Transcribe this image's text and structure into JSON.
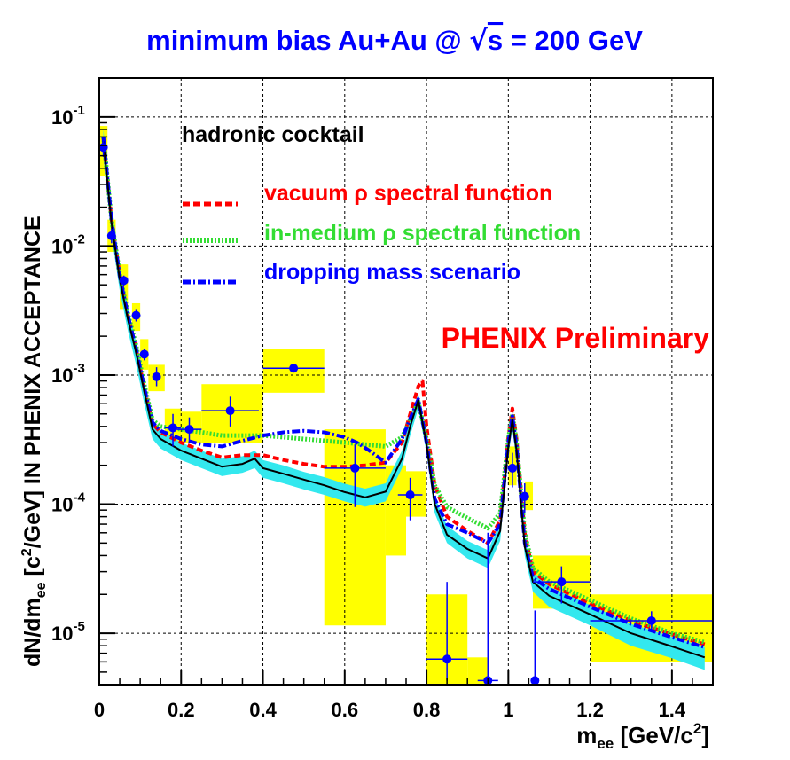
{
  "chart_data": {
    "type": "line",
    "title_main": "minimum bias Au+Au @ ",
    "title_sqrt": "√",
    "title_s": "s",
    "title_tail": " = 200 GeV",
    "xlabel_main": "m",
    "xlabel_sub": "ee",
    "xlabel_tail": " [GeV/c",
    "xlabel_sup": "2",
    "xlabel_end": "]",
    "ylabel_main": "dN/dm",
    "ylabel_sub": "ee",
    "ylabel_mid": " [c",
    "ylabel_sup": "2",
    "ylabel_tail": "/GeV] IN PHENIX ACCEPTANCE",
    "xlim": [
      0,
      1.5
    ],
    "ylim": [
      4e-06,
      0.2
    ],
    "yscale": "log",
    "grid": true,
    "xticks": [
      {
        "v": 0,
        "label": "0"
      },
      {
        "v": 0.2,
        "label": "0.2"
      },
      {
        "v": 0.4,
        "label": "0.4"
      },
      {
        "v": 0.6,
        "label": "0.6"
      },
      {
        "v": 0.8,
        "label": "0.8"
      },
      {
        "v": 1.0,
        "label": "1"
      },
      {
        "v": 1.2,
        "label": "1.2"
      },
      {
        "v": 1.4,
        "label": "1.4"
      }
    ],
    "yticks": [
      {
        "v": 0.1,
        "base": "10",
        "exp": "-1"
      },
      {
        "v": 0.01,
        "base": "10",
        "exp": "-2"
      },
      {
        "v": 0.001,
        "base": "10",
        "exp": "-3"
      },
      {
        "v": 0.0001,
        "base": "10",
        "exp": "-4"
      },
      {
        "v": 1e-05,
        "base": "10",
        "exp": "-5"
      }
    ],
    "annotation": "PHENIX Preliminary",
    "legend": [
      {
        "label": "hadronic cocktail",
        "color": "#000000",
        "style": "solid"
      },
      {
        "label": "vacuum ρ spectral function",
        "color": "#ff0000",
        "style": "dashed"
      },
      {
        "label": "in-medium ρ spectral function",
        "color": "#33dd33",
        "style": "dotted"
      },
      {
        "label": "dropping mass scenario",
        "color": "#0000ff",
        "style": "dashdot"
      }
    ],
    "colors": {
      "title": "#0000ff",
      "band": "#33e8ee",
      "sys_box": "#ffff00",
      "data_point": "#0000ff",
      "annotation": "#ff0000"
    },
    "cocktail_band": {
      "x": [
        0.01,
        0.03,
        0.05,
        0.07,
        0.09,
        0.11,
        0.13,
        0.15,
        0.2,
        0.25,
        0.3,
        0.35,
        0.38,
        0.4,
        0.45,
        0.5,
        0.55,
        0.6,
        0.65,
        0.7,
        0.74,
        0.76,
        0.78,
        0.8,
        0.82,
        0.85,
        0.9,
        0.95,
        0.98,
        1.0,
        1.01,
        1.02,
        1.04,
        1.06,
        1.1,
        1.2,
        1.3,
        1.4,
        1.48
      ],
      "lo": [
        0.05,
        0.012,
        0.0045,
        0.0022,
        0.0012,
        0.0006,
        0.00032,
        0.00027,
        0.00022,
        0.00019,
        0.000165,
        0.000175,
        0.00019,
        0.00016,
        0.000145,
        0.00013,
        0.000118,
        0.000105,
        9.55e-05,
        0.000105,
        0.00019,
        0.00034,
        0.00055,
        0.00025,
        8.5e-05,
        5e-05,
        3.8e-05,
        3.2e-05,
        5.2e-05,
        0.00024,
        0.00038,
        0.00022,
        4e-05,
        2.1e-05,
        1.6e-05,
        1.15e-05,
        8e-06,
        6.4e-06,
        5.2e-06
      ],
      "hi": [
        0.08,
        0.019,
        0.007,
        0.0033,
        0.0018,
        0.0009,
        0.00045,
        0.00037,
        0.0003,
        0.00026,
        0.000225,
        0.000235,
        0.00026,
        0.00022,
        0.0002,
        0.000178,
        0.000162,
        0.000144,
        0.000132,
        0.000145,
        0.00026,
        0.00046,
        0.00072,
        0.00034,
        0.000115,
        6.8e-05,
        5.2e-05,
        4.4e-05,
        7.2e-05,
        0.00032,
        0.00052,
        0.0003,
        5.5e-05,
        3e-05,
        2.3e-05,
        1.65e-05,
        1.18e-05,
        9.4e-06,
        7.8e-06
      ]
    },
    "series": [
      {
        "name": "hadronic cocktail",
        "color": "#000000",
        "dash": "none",
        "width": 2,
        "x": [
          0.01,
          0.03,
          0.05,
          0.07,
          0.09,
          0.11,
          0.13,
          0.15,
          0.2,
          0.25,
          0.3,
          0.35,
          0.38,
          0.4,
          0.45,
          0.5,
          0.55,
          0.6,
          0.65,
          0.7,
          0.74,
          0.76,
          0.78,
          0.8,
          0.82,
          0.85,
          0.9,
          0.95,
          0.98,
          1.0,
          1.01,
          1.02,
          1.04,
          1.06,
          1.1,
          1.2,
          1.3,
          1.4,
          1.48
        ],
        "y": [
          0.065,
          0.015,
          0.0055,
          0.0027,
          0.0015,
          0.00075,
          0.00038,
          0.00032,
          0.00026,
          0.000225,
          0.000195,
          0.000205,
          0.000225,
          0.00019,
          0.000172,
          0.000155,
          0.00014,
          0.000124,
          0.000113,
          0.000125,
          0.000225,
          0.0004,
          0.00064,
          0.00029,
          0.0001,
          5.8e-05,
          4.5e-05,
          3.8e-05,
          6.2e-05,
          0.00028,
          0.00045,
          0.00026,
          4.7e-05,
          2.5e-05,
          1.95e-05,
          1.4e-05,
          1e-05,
          7.9e-06,
          6.5e-06
        ]
      },
      {
        "name": "vacuum ρ spectral function",
        "color": "#ff0000",
        "dash": "7,4",
        "width": 4,
        "x": [
          0.01,
          0.03,
          0.05,
          0.07,
          0.09,
          0.11,
          0.13,
          0.15,
          0.2,
          0.25,
          0.3,
          0.35,
          0.4,
          0.45,
          0.5,
          0.55,
          0.6,
          0.65,
          0.7,
          0.74,
          0.76,
          0.78,
          0.79,
          0.8,
          0.82,
          0.85,
          0.9,
          0.95,
          0.98,
          1.0,
          1.01,
          1.02,
          1.04,
          1.06,
          1.1,
          1.2,
          1.3,
          1.4,
          1.48
        ],
        "y": [
          0.068,
          0.016,
          0.006,
          0.0029,
          0.0016,
          0.0008,
          0.00042,
          0.00036,
          0.0003,
          0.00026,
          0.00023,
          0.00024,
          0.00024,
          0.00022,
          0.000205,
          0.000195,
          0.000195,
          0.0002,
          0.00021,
          0.0003,
          0.0005,
          0.00082,
          0.0009,
          0.0004,
          0.00014,
          8e-05,
          6.2e-05,
          5e-05,
          7.5e-05,
          0.00033,
          0.00055,
          0.00032,
          6e-05,
          3e-05,
          2.4e-05,
          1.7e-05,
          1.25e-05,
          9.8e-06,
          8.2e-06
        ]
      },
      {
        "name": "in-medium ρ spectral function",
        "color": "#33dd33",
        "dash": "2,2",
        "width": 5,
        "x": [
          0.01,
          0.03,
          0.05,
          0.07,
          0.09,
          0.11,
          0.13,
          0.15,
          0.2,
          0.25,
          0.3,
          0.35,
          0.4,
          0.45,
          0.5,
          0.55,
          0.6,
          0.65,
          0.7,
          0.74,
          0.76,
          0.78,
          0.8,
          0.82,
          0.85,
          0.9,
          0.95,
          0.98,
          1.0,
          1.01,
          1.02,
          1.04,
          1.06,
          1.1,
          1.2,
          1.3,
          1.4,
          1.48
        ],
        "y": [
          0.07,
          0.016,
          0.006,
          0.003,
          0.0017,
          0.00085,
          0.00045,
          0.0004,
          0.00038,
          0.00036,
          0.00034,
          0.00034,
          0.00034,
          0.00033,
          0.00032,
          0.00031,
          0.0003,
          0.00029,
          0.00028,
          0.00033,
          0.00045,
          0.00062,
          0.00032,
          0.00014,
          9.5e-05,
          7.8e-05,
          6.5e-05,
          8.5e-05,
          0.00032,
          0.0005,
          0.0003,
          6e-05,
          3.2e-05,
          2.5e-05,
          1.8e-05,
          1.3e-05,
          1e-05,
          8.5e-06
        ]
      },
      {
        "name": "dropping mass scenario",
        "color": "#0000ff",
        "dash": "9,3,2,3",
        "width": 4,
        "x": [
          0.01,
          0.03,
          0.05,
          0.07,
          0.09,
          0.11,
          0.13,
          0.15,
          0.2,
          0.25,
          0.3,
          0.35,
          0.4,
          0.45,
          0.5,
          0.55,
          0.6,
          0.63,
          0.66,
          0.7,
          0.74,
          0.76,
          0.78,
          0.8,
          0.82,
          0.85,
          0.9,
          0.95,
          0.98,
          1.0,
          1.01,
          1.02,
          1.04,
          1.06,
          1.1,
          1.2,
          1.3,
          1.4,
          1.48
        ],
        "y": [
          0.07,
          0.016,
          0.0058,
          0.0029,
          0.0016,
          0.0008,
          0.00043,
          0.00037,
          0.00032,
          0.00029,
          0.00028,
          0.00031,
          0.00034,
          0.00036,
          0.00037,
          0.00036,
          0.00033,
          0.0003,
          0.00026,
          0.00021,
          0.00032,
          0.00046,
          0.00065,
          0.0003,
          0.00011,
          7e-05,
          6e-05,
          5e-05,
          7e-05,
          0.0003,
          0.00048,
          0.00028,
          5e-05,
          2.7e-05,
          2.2e-05,
          1.6e-05,
          1.18e-05,
          9.3e-06,
          7.8e-06
        ]
      }
    ],
    "sys_boxes": [
      {
        "x0": 0.0,
        "x1": 0.02,
        "y0": 0.035,
        "y1": 0.085
      },
      {
        "x0": 0.02,
        "x1": 0.04,
        "y0": 0.009,
        "y1": 0.016
      },
      {
        "x0": 0.05,
        "x1": 0.07,
        "y0": 0.0032,
        "y1": 0.0072
      },
      {
        "x0": 0.08,
        "x1": 0.1,
        "y0": 0.0022,
        "y1": 0.0036
      },
      {
        "x0": 0.1,
        "x1": 0.12,
        "y0": 0.0011,
        "y1": 0.0019
      },
      {
        "x0": 0.12,
        "x1": 0.16,
        "y0": 0.00075,
        "y1": 0.0012
      },
      {
        "x0": 0.16,
        "x1": 0.2,
        "y0": 0.00028,
        "y1": 0.00055
      },
      {
        "x0": 0.2,
        "x1": 0.25,
        "y0": 0.0003,
        "y1": 0.00052
      },
      {
        "x0": 0.25,
        "x1": 0.4,
        "y0": 0.0003,
        "y1": 0.00085
      },
      {
        "x0": 0.4,
        "x1": 0.55,
        "y0": 0.00073,
        "y1": 0.0016
      },
      {
        "x0": 0.55,
        "x1": 0.7,
        "y0": 1.15e-05,
        "y1": 0.00038
      },
      {
        "x0": 0.7,
        "x1": 0.75,
        "y0": 4e-05,
        "y1": 0.0002
      },
      {
        "x0": 0.75,
        "x1": 0.8,
        "y0": 8e-05,
        "y1": 0.00018
      },
      {
        "x0": 0.8,
        "x1": 0.9,
        "y0": 4e-06,
        "y1": 2e-05
      },
      {
        "x0": 0.9,
        "x1": 0.95,
        "y0": 4e-06,
        "y1": 6.5e-06
      },
      {
        "x0": 1.0,
        "x1": 1.02,
        "y0": 0.00014,
        "y1": 0.00028
      },
      {
        "x0": 1.04,
        "x1": 1.06,
        "y0": 9e-05,
        "y1": 0.00015
      },
      {
        "x0": 1.06,
        "x1": 1.2,
        "y0": 1.55e-05,
        "y1": 4e-05
      },
      {
        "x0": 1.2,
        "x1": 1.5,
        "y0": 6e-06,
        "y1": 2e-05
      }
    ],
    "points": [
      {
        "x": 0.01,
        "y": 0.058,
        "xe": 0.01,
        "ylo": 0.049,
        "yhi": 0.067
      },
      {
        "x": 0.03,
        "y": 0.012,
        "xe": 0.01,
        "ylo": 0.0105,
        "yhi": 0.0136
      },
      {
        "x": 0.06,
        "y": 0.0054,
        "xe": 0.01,
        "ylo": 0.0049,
        "yhi": 0.0059
      },
      {
        "x": 0.09,
        "y": 0.0029,
        "xe": 0.01,
        "ylo": 0.0026,
        "yhi": 0.0032
      },
      {
        "x": 0.11,
        "y": 0.00145,
        "xe": 0.01,
        "ylo": 0.0013,
        "yhi": 0.0016
      },
      {
        "x": 0.14,
        "y": 0.00097,
        "xe": 0.01,
        "ylo": 0.00082,
        "yhi": 0.00115
      },
      {
        "x": 0.18,
        "y": 0.00039,
        "xe": 0.02,
        "ylo": 0.00028,
        "yhi": 0.0005
      },
      {
        "x": 0.22,
        "y": 0.00038,
        "xe": 0.03,
        "ylo": 0.0003,
        "yhi": 0.00047
      },
      {
        "x": 0.32,
        "y": 0.00053,
        "xe": 0.07,
        "ylo": 0.0004,
        "yhi": 0.00068
      },
      {
        "x": 0.475,
        "y": 0.00113,
        "xe": 0.075,
        "ylo": 0.00105,
        "yhi": 0.00121
      },
      {
        "x": 0.625,
        "y": 0.00019,
        "xe": 0.075,
        "ylo": 9.5e-05,
        "yhi": 0.00029
      },
      {
        "x": 0.76,
        "y": 0.000118,
        "xe": 0.03,
        "ylo": 7.5e-05,
        "yhi": 0.00016
      },
      {
        "x": 0.85,
        "y": 6.3e-06,
        "xe": 0.05,
        "ylo": 4.3e-06,
        "yhi": 2.5e-05
      },
      {
        "x": 0.95,
        "y": 4.3e-06,
        "xe": 0.025,
        "ylo": 4.3e-06,
        "yhi": 6e-05
      },
      {
        "x": 1.01,
        "y": 0.00019,
        "xe": 0.01,
        "ylo": 0.000135,
        "yhi": 0.00025
      },
      {
        "x": 1.04,
        "y": 0.000115,
        "xe": 0.01,
        "ylo": 8.5e-05,
        "yhi": 0.000145
      },
      {
        "x": 1.065,
        "y": 4.3e-06,
        "xe": 0.005,
        "ylo": 4.3e-06,
        "yhi": 1.5e-05
      },
      {
        "x": 1.13,
        "y": 2.5e-05,
        "xe": 0.07,
        "ylo": 1.7e-05,
        "yhi": 3.3e-05
      },
      {
        "x": 1.35,
        "y": 1.25e-05,
        "xe": 0.15,
        "ylo": 1.05e-05,
        "yhi": 1.48e-05
      }
    ]
  }
}
